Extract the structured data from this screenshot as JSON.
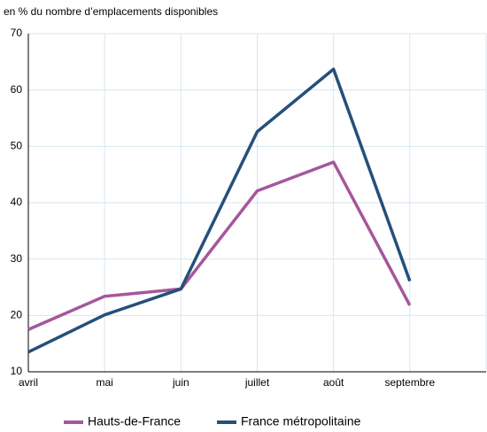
{
  "chart_data": {
    "type": "line",
    "y_axis_label": "en % du nombre d’emplacements disponibles",
    "categories": [
      "avril",
      "mai",
      "juin",
      "juillet",
      "août",
      "septembre"
    ],
    "series": [
      {
        "name": "Hauts-de-France",
        "color": "#a5579c",
        "values": [
          17.5,
          23.4,
          24.7,
          42.1,
          47.2,
          21.8
        ]
      },
      {
        "name": "France métropolitaine",
        "color": "#24507a",
        "values": [
          13.5,
          20.1,
          24.7,
          52.6,
          63.7,
          26.1
        ]
      }
    ],
    "ylim": [
      10,
      70
    ],
    "yticks": [
      10,
      20,
      30,
      40,
      50,
      60,
      70
    ],
    "grid": true,
    "legend": "bottom"
  }
}
